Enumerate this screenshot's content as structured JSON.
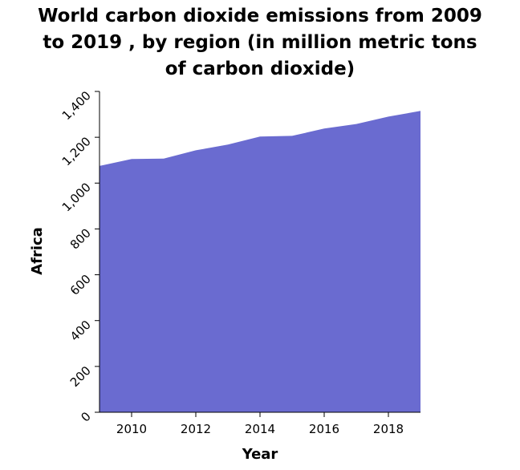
{
  "chart_data": {
    "type": "area",
    "title": "World carbon dioxide emissions from 2009 to 2019 , by region (in million metric tons of carbon dioxide)",
    "title_lines": [
      "World carbon dioxide emissions from 2009",
      "to 2019 , by region (in million metric tons",
      "of carbon dioxide)"
    ],
    "xlabel": "Year",
    "ylabel": "Africa",
    "xlim": [
      2009,
      2019
    ],
    "ylim": [
      0,
      1400
    ],
    "x_ticks": [
      2010,
      2012,
      2014,
      2016,
      2018
    ],
    "x_tick_labels": [
      "2010",
      "2012",
      "2014",
      "2016",
      "2018"
    ],
    "y_ticks": [
      0,
      200,
      400,
      600,
      800,
      1000,
      1200,
      1400
    ],
    "y_tick_labels": [
      "0",
      "200",
      "400",
      "600",
      "800",
      "1,000",
      "1,200",
      "1,400"
    ],
    "grid": false,
    "fill_color": "#6a6bd0",
    "series": [
      {
        "x": [
          2009,
          2010,
          2011,
          2012,
          2013,
          2014,
          2015,
          2016,
          2017,
          2018,
          2019
        ],
        "values": [
          1075,
          1105,
          1107,
          1143,
          1168,
          1203,
          1206,
          1238,
          1258,
          1290,
          1315
        ]
      }
    ]
  }
}
